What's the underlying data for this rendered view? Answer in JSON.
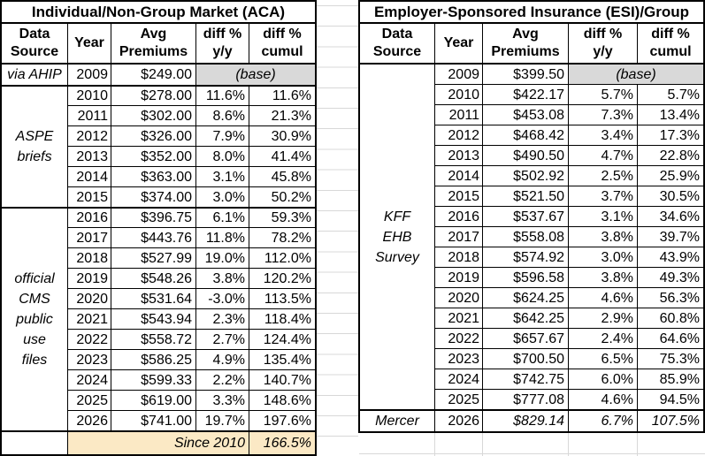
{
  "colors": {
    "border": "#000000",
    "base_fill": "#d9d9d9",
    "footer_fill": "#fbe9c5",
    "gridline": "#d8d8d8"
  },
  "tables": [
    {
      "id": "aca",
      "title": "Individual/Non-Group Market (ACA)",
      "col_headers": [
        [
          "Data",
          "Source"
        ],
        [
          "Year"
        ],
        [
          "Avg",
          "Premiums"
        ],
        [
          "diff %",
          "y/y"
        ],
        [
          "diff %",
          "cumul"
        ]
      ],
      "groups": [
        {
          "source_lines": [
            "via AHIP"
          ],
          "rows": [
            {
              "year": "2009",
              "premium": "$249.00",
              "note": "(base)",
              "base": true
            }
          ]
        },
        {
          "source_lines": [
            "ASPE",
            "briefs"
          ],
          "rows": [
            {
              "year": "2010",
              "premium": "$278.00",
              "yy": "11.6%",
              "cumul": "11.6%"
            },
            {
              "year": "2011",
              "premium": "$302.00",
              "yy": "8.6%",
              "cumul": "21.3%"
            },
            {
              "year": "2012",
              "premium": "$326.00",
              "yy": "7.9%",
              "cumul": "30.9%"
            },
            {
              "year": "2013",
              "premium": "$352.00",
              "yy": "8.0%",
              "cumul": "41.4%"
            },
            {
              "year": "2014",
              "premium": "$363.00",
              "yy": "3.1%",
              "cumul": "45.8%"
            },
            {
              "year": "2015",
              "premium": "$374.00",
              "yy": "3.0%",
              "cumul": "50.2%"
            }
          ]
        },
        {
          "source_lines": [
            "official",
            "CMS",
            "public",
            "use",
            "files"
          ],
          "rows": [
            {
              "year": "2016",
              "premium": "$396.75",
              "yy": "6.1%",
              "cumul": "59.3%"
            },
            {
              "year": "2017",
              "premium": "$443.76",
              "yy": "11.8%",
              "cumul": "78.2%"
            },
            {
              "year": "2018",
              "premium": "$527.99",
              "yy": "19.0%",
              "cumul": "112.0%"
            },
            {
              "year": "2019",
              "premium": "$548.26",
              "yy": "3.8%",
              "cumul": "120.2%"
            },
            {
              "year": "2020",
              "premium": "$531.64",
              "yy": "-3.0%",
              "cumul": "113.5%"
            },
            {
              "year": "2021",
              "premium": "$543.94",
              "yy": "2.3%",
              "cumul": "118.4%"
            },
            {
              "year": "2022",
              "premium": "$558.72",
              "yy": "2.7%",
              "cumul": "124.4%"
            },
            {
              "year": "2023",
              "premium": "$586.25",
              "yy": "4.9%",
              "cumul": "135.4%"
            },
            {
              "year": "2024",
              "premium": "$599.33",
              "yy": "2.2%",
              "cumul": "140.7%"
            },
            {
              "year": "2025",
              "premium": "$619.00",
              "yy": "3.3%",
              "cumul": "148.6%"
            },
            {
              "year": "2026",
              "premium": "$741.00",
              "yy": "19.7%",
              "cumul": "197.6%"
            }
          ]
        }
      ],
      "footer": {
        "label": "Since 2010",
        "value": "166.5%"
      }
    },
    {
      "id": "esi",
      "title": "Employer-Sponsored Insurance (ESI)/Group",
      "col_headers": [
        [
          "Data",
          "Source"
        ],
        [
          "Year"
        ],
        [
          "Avg",
          "Premiums"
        ],
        [
          "diff %",
          "y/y"
        ],
        [
          "diff %",
          "cumul"
        ]
      ],
      "groups": [
        {
          "source_lines": [
            "KFF",
            "EHB",
            "Survey"
          ],
          "rows": [
            {
              "year": "2009",
              "premium": "$399.50",
              "note": "(base)",
              "base": true
            },
            {
              "year": "2010",
              "premium": "$422.17",
              "yy": "5.7%",
              "cumul": "5.7%"
            },
            {
              "year": "2011",
              "premium": "$453.08",
              "yy": "7.3%",
              "cumul": "13.4%"
            },
            {
              "year": "2012",
              "premium": "$468.42",
              "yy": "3.4%",
              "cumul": "17.3%"
            },
            {
              "year": "2013",
              "premium": "$490.50",
              "yy": "4.7%",
              "cumul": "22.8%"
            },
            {
              "year": "2014",
              "premium": "$502.92",
              "yy": "2.5%",
              "cumul": "25.9%"
            },
            {
              "year": "2015",
              "premium": "$521.50",
              "yy": "3.7%",
              "cumul": "30.5%"
            },
            {
              "year": "2016",
              "premium": "$537.67",
              "yy": "3.1%",
              "cumul": "34.6%"
            },
            {
              "year": "2017",
              "premium": "$558.08",
              "yy": "3.8%",
              "cumul": "39.7%"
            },
            {
              "year": "2018",
              "premium": "$574.92",
              "yy": "3.0%",
              "cumul": "43.9%"
            },
            {
              "year": "2019",
              "premium": "$596.58",
              "yy": "3.8%",
              "cumul": "49.3%"
            },
            {
              "year": "2020",
              "premium": "$624.25",
              "yy": "4.6%",
              "cumul": "56.3%"
            },
            {
              "year": "2021",
              "premium": "$642.25",
              "yy": "2.9%",
              "cumul": "60.8%"
            },
            {
              "year": "2022",
              "premium": "$657.67",
              "yy": "2.4%",
              "cumul": "64.6%"
            },
            {
              "year": "2023",
              "premium": "$700.50",
              "yy": "6.5%",
              "cumul": "75.3%"
            },
            {
              "year": "2024",
              "premium": "$742.75",
              "yy": "6.0%",
              "cumul": "85.9%"
            },
            {
              "year": "2025",
              "premium": "$777.08",
              "yy": "4.6%",
              "cumul": "94.5%"
            }
          ]
        },
        {
          "source_lines": [
            "Mercer"
          ],
          "rows": [
            {
              "year": "2026",
              "premium": "$829.14",
              "yy": "6.7%",
              "cumul": "107.5%",
              "italic": true
            }
          ]
        }
      ]
    }
  ]
}
